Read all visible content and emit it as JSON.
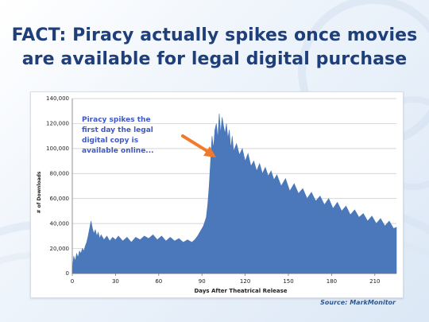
{
  "slide": {
    "title_line1": "FACT: Piracy actually spikes once movies",
    "title_line2": "are available for legal digital purchase",
    "source": "Source: MarkMonitor"
  },
  "annotation": {
    "lines": [
      "Piracy spikes the",
      "first day the legal",
      "digital copy is",
      "available online..."
    ]
  },
  "colors": {
    "title": "#1f3f7a",
    "area": "#4a78ba",
    "annotation": "#3f58c8",
    "arrow": "#f27a2d",
    "grid": "#c8c8c8"
  },
  "chart_data": {
    "type": "area",
    "title": "",
    "xlabel": "Days After Theatrical Release",
    "ylabel": "# of Downloads",
    "xlim": [
      0,
      225
    ],
    "ylim": [
      0,
      140000
    ],
    "x_ticks": [
      0,
      30,
      60,
      90,
      120,
      150,
      180,
      210
    ],
    "y_ticks": [
      0,
      20000,
      40000,
      60000,
      80000,
      100000,
      120000,
      140000
    ],
    "y_tick_labels": [
      "0",
      "20,000",
      "40,000",
      "60,000",
      "80,000",
      "100,000",
      "120,000",
      "140,000"
    ],
    "grid": true,
    "series": [
      {
        "values": [
          [
            0,
            3000
          ],
          [
            1,
            14000
          ],
          [
            2,
            10000
          ],
          [
            3,
            16000
          ],
          [
            4,
            13000
          ],
          [
            5,
            18000
          ],
          [
            6,
            16000
          ],
          [
            7,
            20000
          ],
          [
            8,
            18000
          ],
          [
            9,
            22000
          ],
          [
            10,
            25000
          ],
          [
            11,
            30000
          ],
          [
            12,
            36000
          ],
          [
            13,
            42000
          ],
          [
            14,
            36000
          ],
          [
            15,
            32000
          ],
          [
            16,
            35000
          ],
          [
            17,
            30000
          ],
          [
            18,
            33000
          ],
          [
            19,
            28000
          ],
          [
            20,
            31000
          ],
          [
            22,
            27000
          ],
          [
            24,
            30000
          ],
          [
            26,
            26000
          ],
          [
            28,
            29000
          ],
          [
            30,
            27000
          ],
          [
            32,
            30000
          ],
          [
            35,
            26000
          ],
          [
            38,
            29000
          ],
          [
            41,
            25000
          ],
          [
            44,
            29000
          ],
          [
            47,
            27000
          ],
          [
            50,
            30000
          ],
          [
            53,
            28000
          ],
          [
            56,
            31000
          ],
          [
            59,
            27000
          ],
          [
            62,
            30000
          ],
          [
            65,
            26000
          ],
          [
            68,
            29000
          ],
          [
            71,
            26000
          ],
          [
            74,
            28000
          ],
          [
            77,
            25000
          ],
          [
            80,
            27000
          ],
          [
            83,
            25000
          ],
          [
            85,
            27000
          ],
          [
            87,
            30000
          ],
          [
            89,
            34000
          ],
          [
            91,
            38000
          ],
          [
            93,
            45000
          ],
          [
            94,
            55000
          ],
          [
            95,
            70000
          ],
          [
            96,
            90000
          ],
          [
            97,
            110000
          ],
          [
            98,
            100000
          ],
          [
            99,
            115000
          ],
          [
            100,
            120000
          ],
          [
            101,
            108000
          ],
          [
            102,
            128000
          ],
          [
            103,
            112000
          ],
          [
            104,
            125000
          ],
          [
            105,
            118000
          ],
          [
            106,
            112000
          ],
          [
            107,
            120000
          ],
          [
            108,
            108000
          ],
          [
            109,
            115000
          ],
          [
            110,
            100000
          ],
          [
            111,
            110000
          ],
          [
            112,
            98000
          ],
          [
            114,
            104000
          ],
          [
            116,
            95000
          ],
          [
            118,
            100000
          ],
          [
            120,
            90000
          ],
          [
            122,
            96000
          ],
          [
            124,
            86000
          ],
          [
            126,
            90000
          ],
          [
            128,
            82000
          ],
          [
            130,
            88000
          ],
          [
            132,
            80000
          ],
          [
            134,
            85000
          ],
          [
            136,
            78000
          ],
          [
            138,
            82000
          ],
          [
            140,
            75000
          ],
          [
            142,
            79000
          ],
          [
            145,
            70000
          ],
          [
            148,
            76000
          ],
          [
            151,
            66000
          ],
          [
            154,
            72000
          ],
          [
            157,
            64000
          ],
          [
            160,
            68000
          ],
          [
            163,
            60000
          ],
          [
            166,
            65000
          ],
          [
            169,
            58000
          ],
          [
            172,
            62000
          ],
          [
            175,
            55000
          ],
          [
            178,
            60000
          ],
          [
            181,
            52000
          ],
          [
            184,
            57000
          ],
          [
            187,
            50000
          ],
          [
            190,
            54000
          ],
          [
            193,
            47000
          ],
          [
            196,
            51000
          ],
          [
            199,
            45000
          ],
          [
            202,
            48000
          ],
          [
            205,
            42000
          ],
          [
            208,
            46000
          ],
          [
            211,
            40000
          ],
          [
            214,
            44000
          ],
          [
            217,
            38000
          ],
          [
            220,
            42000
          ],
          [
            223,
            36000
          ],
          [
            225,
            37000
          ]
        ]
      }
    ]
  }
}
